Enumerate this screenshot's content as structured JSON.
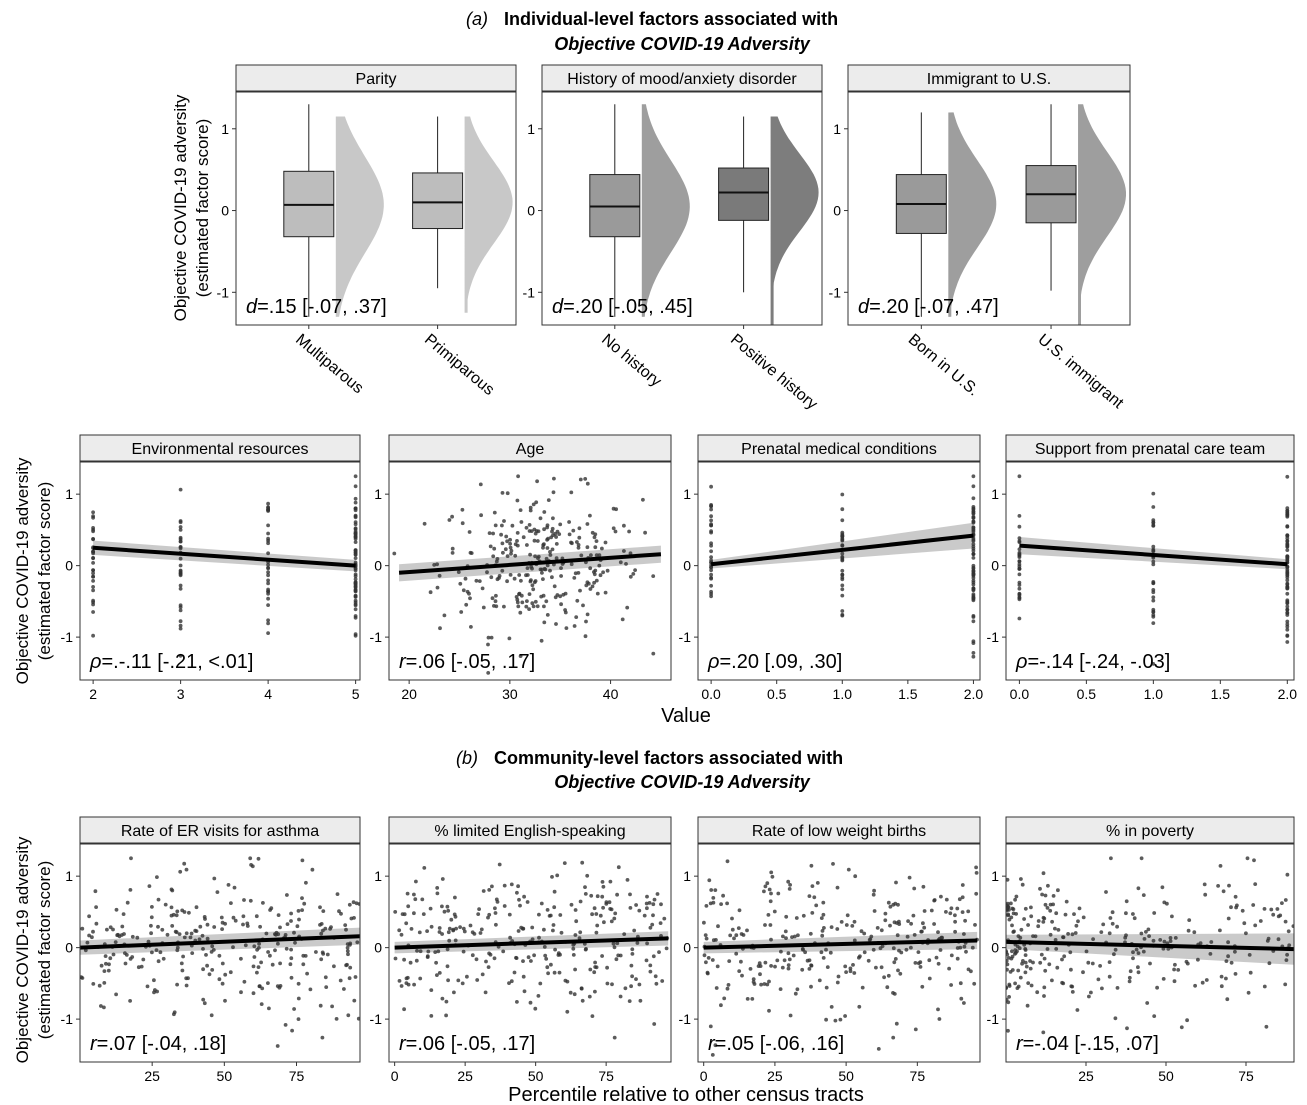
{
  "section_a": {
    "label": "(a)",
    "title_line1": "Individual-level factors associated with",
    "title_line2": "Objective COVID-19 Adversity"
  },
  "section_b": {
    "label": "(b)",
    "title_line1": "Community-level factors associated with",
    "title_line2": "Objective COVID-19 Adversity"
  },
  "ylabel_line1": "Objective COVID-19 adversity",
  "ylabel_line2": "(estimated factor score)",
  "row2_xlabel": "Value",
  "row3_xlabel": "Percentile relative to other census tracts",
  "colors": {
    "strip_fill": "#ececec",
    "box_light": "#bdbdbd",
    "box_mid": "#9a9a9a",
    "box_dark": "#7a7a7a",
    "violin_light": "#c8c8c8",
    "violin_mid": "#9e9e9e",
    "violin_dark": "#7d7d7d",
    "point": "#333333",
    "line": "#000000",
    "ci_band": "#bdbdbd"
  },
  "chart_data": [
    {
      "type": "box",
      "title": "Parity",
      "ylim": [
        -1.4,
        1.45
      ],
      "yticks": [
        -1,
        0,
        1
      ],
      "categories": [
        "Multiparous",
        "Primiparous"
      ],
      "boxes": [
        {
          "min": -1.3,
          "q1": -0.32,
          "median": 0.07,
          "q3": 0.48,
          "max": 1.3,
          "violin_max": 1.15,
          "violin_min": -1.3,
          "shade": "light"
        },
        {
          "min": -0.95,
          "q1": -0.22,
          "median": 0.1,
          "q3": 0.46,
          "max": 1.15,
          "violin_max": 1.15,
          "violin_min": -1.25,
          "shade": "light"
        }
      ],
      "stat_prefix": "d",
      "stat_text": "=.15 [-.07, .37]"
    },
    {
      "type": "box",
      "title": "History of mood/anxiety disorder",
      "ylim": [
        -1.4,
        1.45
      ],
      "yticks": [
        -1,
        0,
        1
      ],
      "categories": [
        "No history",
        "Positive history"
      ],
      "boxes": [
        {
          "min": -1.3,
          "q1": -0.32,
          "median": 0.05,
          "q3": 0.44,
          "max": 1.3,
          "violin_max": 1.3,
          "violin_min": -1.3,
          "shade": "mid"
        },
        {
          "min": -1.0,
          "q1": -0.12,
          "median": 0.22,
          "q3": 0.52,
          "max": 1.15,
          "violin_max": 1.15,
          "violin_min": -1.5,
          "shade": "dark"
        }
      ],
      "stat_prefix": "d",
      "stat_text": "=.20 [-.05, .45]"
    },
    {
      "type": "box",
      "title": "Immigrant to U.S.",
      "ylim": [
        -1.4,
        1.45
      ],
      "yticks": [
        -1,
        0,
        1
      ],
      "categories": [
        "Born in U.S.",
        "U.S. immigrant"
      ],
      "boxes": [
        {
          "min": -1.3,
          "q1": -0.28,
          "median": 0.08,
          "q3": 0.44,
          "max": 1.2,
          "violin_max": 1.2,
          "violin_min": -1.3,
          "shade": "mid"
        },
        {
          "min": -0.98,
          "q1": -0.15,
          "median": 0.2,
          "q3": 0.55,
          "max": 1.3,
          "violin_max": 1.3,
          "violin_min": -1.5,
          "shade": "mid"
        }
      ],
      "stat_prefix": "d",
      "stat_text": "=.20 [-.07, .47]"
    },
    {
      "type": "scatter",
      "title": "Environmental resources",
      "xlim": [
        1.85,
        5.05
      ],
      "ylim": [
        -1.6,
        1.45
      ],
      "xticks": [
        2,
        3,
        4,
        5
      ],
      "xtick_labels": [
        "2",
        "3",
        "4",
        "5"
      ],
      "yticks": [
        -1,
        0,
        1
      ],
      "discrete_x": [
        2,
        3,
        4,
        5
      ],
      "fit": {
        "x0": 2,
        "y0": 0.25,
        "x1": 5,
        "y1": 0.0,
        "ci0": 0.1,
        "ci1": 0.08
      },
      "stat_prefix": "ρ",
      "stat_text": "=.-.11 [-.21, <.01]"
    },
    {
      "type": "scatter",
      "title": "Age",
      "xlim": [
        18,
        46
      ],
      "ylim": [
        -1.6,
        1.45
      ],
      "xticks": [
        20,
        30,
        40
      ],
      "xtick_labels": [
        "20",
        "30",
        "40"
      ],
      "yticks": [
        -1,
        0,
        1
      ],
      "continuous_x": {
        "mean": 33,
        "sd": 5,
        "n": 300
      },
      "fit": {
        "x0": 19,
        "y0": -0.1,
        "x1": 45,
        "y1": 0.16,
        "ci0": 0.12,
        "ci1": 0.12
      },
      "stat_prefix": "r",
      "stat_text": "=.06 [-.05, .17]"
    },
    {
      "type": "scatter",
      "title": "Prenatal medical conditions",
      "xlim": [
        -0.1,
        2.05
      ],
      "ylim": [
        -1.6,
        1.45
      ],
      "xticks": [
        0,
        0.5,
        1,
        1.5,
        2
      ],
      "xtick_labels": [
        "0.0",
        "0.5",
        "1.0",
        "1.5",
        "2.0"
      ],
      "yticks": [
        -1,
        0,
        1
      ],
      "discrete_x": [
        0,
        1,
        2
      ],
      "fit": {
        "x0": 0,
        "y0": 0.02,
        "x1": 2,
        "y1": 0.42,
        "ci0": 0.06,
        "ci1": 0.18
      },
      "stat_prefix": "ρ",
      "stat_text": "=.20 [.09, .30]"
    },
    {
      "type": "scatter",
      "title": "Support from prenatal care team",
      "xlim": [
        -0.1,
        2.05
      ],
      "ylim": [
        -1.6,
        1.45
      ],
      "xticks": [
        0,
        0.5,
        1,
        1.5,
        2
      ],
      "xtick_labels": [
        "0.0",
        "0.5",
        "1.0",
        "1.5",
        "2.0"
      ],
      "yticks": [
        -1,
        0,
        1
      ],
      "discrete_x": [
        0,
        1,
        2
      ],
      "fit": {
        "x0": 0,
        "y0": 0.28,
        "x1": 2,
        "y1": 0.02,
        "ci0": 0.12,
        "ci1": 0.07
      },
      "stat_prefix": "ρ",
      "stat_text": "=-.14 [-.24, -.03]"
    },
    {
      "type": "scatter",
      "title": "Rate of ER visits for asthma",
      "xlim": [
        0,
        97
      ],
      "ylim": [
        -1.6,
        1.45
      ],
      "xticks": [
        25,
        50,
        75
      ],
      "xtick_labels": [
        "25",
        "50",
        "75"
      ],
      "yticks": [
        -1,
        0,
        1
      ],
      "continuous_x": {
        "uniform": [
          0,
          97
        ],
        "n": 300
      },
      "fit": {
        "x0": 0,
        "y0": 0.0,
        "x1": 97,
        "y1": 0.16,
        "ci0": 0.1,
        "ci1": 0.12
      },
      "stat_prefix": "r",
      "stat_text": "=.07 [-.04, .18]"
    },
    {
      "type": "scatter",
      "title": "% limited English-speaking",
      "xlim": [
        -2,
        98
      ],
      "ylim": [
        -1.6,
        1.45
      ],
      "xticks": [
        0,
        25,
        50,
        75
      ],
      "xtick_labels": [
        "0",
        "25",
        "50",
        "75"
      ],
      "yticks": [
        -1,
        0,
        1
      ],
      "continuous_x": {
        "uniform": [
          0,
          97
        ],
        "n": 300
      },
      "fit": {
        "x0": 0,
        "y0": 0.0,
        "x1": 97,
        "y1": 0.13,
        "ci0": 0.08,
        "ci1": 0.1
      },
      "stat_prefix": "r",
      "stat_text": "=.06 [-.05, .17]"
    },
    {
      "type": "scatter",
      "title": "Rate of low weight births",
      "xlim": [
        -2,
        97
      ],
      "ylim": [
        -1.6,
        1.45
      ],
      "xticks": [
        0,
        25,
        50,
        75
      ],
      "xtick_labels": [
        "0",
        "25",
        "50",
        "75"
      ],
      "yticks": [
        -1,
        0,
        1
      ],
      "continuous_x": {
        "uniform": [
          0,
          96
        ],
        "n": 300
      },
      "fit": {
        "x0": 0,
        "y0": 0.0,
        "x1": 96,
        "y1": 0.1,
        "ci0": 0.08,
        "ci1": 0.12
      },
      "stat_prefix": "r",
      "stat_text": "=.05 [-.06, .16]"
    },
    {
      "type": "scatter",
      "title": "% in poverty",
      "xlim": [
        0,
        90
      ],
      "ylim": [
        -1.6,
        1.45
      ],
      "xticks": [
        25,
        50,
        75
      ],
      "xtick_labels": [
        "25",
        "50",
        "75"
      ],
      "yticks": [
        -1,
        0,
        1
      ],
      "continuous_x": {
        "skewed": [
          0,
          90
        ],
        "n": 300
      },
      "fit": {
        "x0": 0,
        "y0": 0.08,
        "x1": 90,
        "y1": -0.02,
        "ci0": 0.1,
        "ci1": 0.22
      },
      "stat_prefix": "r",
      "stat_text": "=-.04 [-.15, .07]"
    }
  ]
}
